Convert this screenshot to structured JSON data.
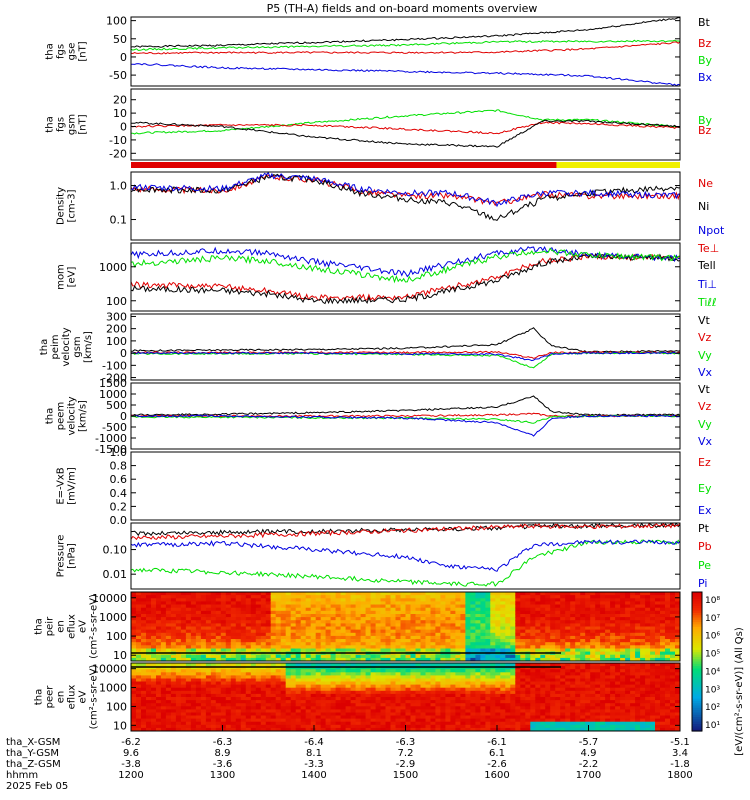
{
  "title": "P5 (TH-A) fields and on-board moments overview",
  "colors": {
    "black": "#000000",
    "red": "#e00000",
    "green": "#00e000",
    "blue": "#0000e0",
    "cyan": "#00b0b0"
  },
  "x_axis": {
    "ticks": [
      "1200",
      "1300",
      "1400",
      "1500",
      "1600",
      "1700",
      "1800"
    ],
    "rows": [
      {
        "label": "tha_X-GSM",
        "values": [
          "-6.2",
          "-6.3",
          "-6.4",
          "-6.3",
          "-6.1",
          "-5.7",
          "-5.1"
        ]
      },
      {
        "label": "tha_Y-GSM",
        "values": [
          "9.6",
          "8.9",
          "8.1",
          "7.2",
          "6.1",
          "4.9",
          "3.4"
        ]
      },
      {
        "label": "tha_Z-GSM",
        "values": [
          "-3.8",
          "-3.6",
          "-3.3",
          "-2.9",
          "-2.6",
          "-2.2",
          "-1.8"
        ]
      },
      {
        "label": "hhmm",
        "values": [
          "1200",
          "1300",
          "1400",
          "1500",
          "1600",
          "1700",
          "1800"
        ]
      }
    ],
    "date": "2025 Feb 05"
  },
  "colorbar": {
    "ticks": [
      "10⁸",
      "10⁷",
      "10⁶",
      "10⁵",
      "10⁴",
      "10³",
      "10²",
      "10¹"
    ],
    "label": "[eV/(cm²-s-sr-eV)] (All Qs)"
  },
  "chart_data": [
    {
      "type": "line",
      "ylabel": [
        "tha",
        "fgs",
        "gse",
        "[nT]"
      ],
      "ylim": [
        -80,
        110
      ],
      "yticks": [
        "100",
        "50",
        "0",
        "-50"
      ],
      "ytick_values": [
        100,
        50,
        0,
        -50
      ],
      "x": [
        1200,
        1300,
        1400,
        1500,
        1600,
        1700,
        1800
      ],
      "series": [
        {
          "name": "Bt",
          "color": "#000000",
          "values": [
            28,
            32,
            40,
            48,
            58,
            75,
            108
          ]
        },
        {
          "name": "Bz",
          "color": "#e00000",
          "values": [
            10,
            12,
            12,
            12,
            13,
            22,
            40
          ]
        },
        {
          "name": "By",
          "color": "#00e000",
          "values": [
            20,
            25,
            29,
            33,
            42,
            43,
            44
          ]
        },
        {
          "name": "Bx",
          "color": "#0000e0",
          "values": [
            -18,
            -30,
            -35,
            -40,
            -45,
            -52,
            -78
          ]
        }
      ]
    },
    {
      "type": "line",
      "ylabel": [
        "tha",
        "fgs",
        "gsm",
        "[nT]"
      ],
      "ylim": [
        -25,
        28
      ],
      "yticks": [
        "20",
        "10",
        "0",
        "-10",
        "-20"
      ],
      "ytick_values": [
        20,
        10,
        0,
        -10,
        -20
      ],
      "x": [
        1200,
        1300,
        1400,
        1500,
        1600,
        1650,
        1700,
        1800
      ],
      "series": [
        {
          "name": "By",
          "color": "#00e000",
          "values": [
            -5,
            -3,
            3,
            8,
            12,
            5,
            5,
            0
          ]
        },
        {
          "name": "Bz",
          "color": "#e00000",
          "values": [
            0,
            1,
            1,
            -2,
            -5,
            3,
            2,
            -1
          ]
        },
        {
          "name": "",
          "color": "#000000",
          "values": [
            3,
            0,
            -8,
            -13,
            -15,
            4,
            4,
            0
          ]
        }
      ]
    },
    {
      "type": "line",
      "ylabel": [
        "Density",
        "[cm-3]"
      ],
      "ylog": true,
      "ylim": [
        0.025,
        2.5
      ],
      "yticks": [
        "1.0",
        "0.1"
      ],
      "ytick_values": [
        1.0,
        0.1
      ],
      "x": [
        1200,
        1300,
        1350,
        1400,
        1450,
        1500,
        1550,
        1600,
        1650,
        1700,
        1800
      ],
      "series": [
        {
          "name": "Ne",
          "color": "#e00000",
          "values": [
            0.8,
            0.7,
            1.8,
            1.5,
            0.7,
            0.5,
            0.5,
            0.3,
            0.55,
            0.5,
            0.5
          ]
        },
        {
          "name": "Ni",
          "color": "#000000",
          "values": [
            0.8,
            0.7,
            1.8,
            1.5,
            0.6,
            0.4,
            0.3,
            0.1,
            0.4,
            0.6,
            0.9
          ]
        },
        {
          "name": "Npot",
          "color": "#0000e0",
          "values": [
            0.9,
            0.8,
            2.0,
            1.6,
            0.8,
            0.6,
            0.6,
            0.3,
            0.6,
            0.6,
            0.5
          ]
        }
      ]
    },
    {
      "type": "line",
      "ylabel": [
        "mom",
        "[eV]"
      ],
      "ylog": true,
      "ylim": [
        50,
        5000
      ],
      "yticks": [
        "1000",
        "100"
      ],
      "ytick_values": [
        1000,
        100
      ],
      "x": [
        1200,
        1300,
        1350,
        1400,
        1500,
        1550,
        1600,
        1650,
        1700,
        1800
      ],
      "series": [
        {
          "name": "Te⊥",
          "color": "#e00000",
          "values": [
            300,
            260,
            200,
            120,
            130,
            250,
            500,
            1500,
            2000,
            1800
          ]
        },
        {
          "name": "Tell",
          "color": "#000000",
          "values": [
            230,
            200,
            160,
            100,
            110,
            200,
            400,
            1300,
            2000,
            1800
          ]
        },
        {
          "name": "Ti⊥",
          "color": "#0000e0",
          "values": [
            2200,
            3000,
            2500,
            1400,
            600,
            1300,
            2500,
            3500,
            2200,
            1800
          ]
        },
        {
          "name": "Tiℓℓ",
          "color": "#00e000",
          "values": [
            1200,
            1800,
            1500,
            900,
            400,
            900,
            2000,
            3000,
            2200,
            1800
          ]
        }
      ]
    },
    {
      "type": "line",
      "ylabel": [
        "tha",
        "peim",
        "velocity",
        "gsm",
        "[km/s]"
      ],
      "ylim": [
        -220,
        320
      ],
      "yticks": [
        "300",
        "200",
        "100",
        "0",
        "-100",
        "-200"
      ],
      "ytick_values": [
        300,
        200,
        100,
        0,
        -100,
        -200
      ],
      "x": [
        1200,
        1300,
        1400,
        1500,
        1600,
        1640,
        1660,
        1700,
        1800
      ],
      "series": [
        {
          "name": "Vt",
          "color": "#000000",
          "values": [
            20,
            25,
            30,
            40,
            70,
            200,
            60,
            10,
            20
          ]
        },
        {
          "name": "Vz",
          "color": "#e00000",
          "values": [
            5,
            5,
            5,
            5,
            10,
            -40,
            5,
            5,
            5
          ]
        },
        {
          "name": "Vy",
          "color": "#00e000",
          "values": [
            -5,
            -5,
            -5,
            -10,
            -20,
            -120,
            -5,
            0,
            0
          ]
        },
        {
          "name": "Vx",
          "color": "#0000e0",
          "values": [
            0,
            0,
            0,
            -5,
            -10,
            -60,
            -5,
            0,
            0
          ]
        }
      ]
    },
    {
      "type": "line",
      "ylabel": [
        "tha",
        "peem",
        "velocity",
        "[km/s]"
      ],
      "ylim": [
        -1500,
        1500
      ],
      "yticks": [
        "1500",
        "1000",
        "500",
        "0",
        "-500",
        "-1000",
        "-1500"
      ],
      "ytick_values": [
        1500,
        1000,
        500,
        0,
        -500,
        -1000,
        -1500
      ],
      "x": [
        1200,
        1300,
        1400,
        1500,
        1600,
        1640,
        1660,
        1700,
        1800
      ],
      "series": [
        {
          "name": "Vt",
          "color": "#000000",
          "values": [
            50,
            80,
            150,
            250,
            400,
            900,
            200,
            50,
            50
          ]
        },
        {
          "name": "Vz",
          "color": "#e00000",
          "values": [
            0,
            0,
            0,
            0,
            50,
            100,
            0,
            0,
            0
          ]
        },
        {
          "name": "Vy",
          "color": "#00e000",
          "values": [
            -50,
            -50,
            -80,
            -100,
            -150,
            -300,
            -50,
            0,
            0
          ]
        },
        {
          "name": "Vx",
          "color": "#0000e0",
          "values": [
            0,
            0,
            -50,
            -100,
            -300,
            -900,
            -100,
            0,
            0
          ]
        }
      ]
    },
    {
      "type": "line",
      "ylabel": [
        "E=-VxB",
        "[mV/m]"
      ],
      "ylim": [
        0,
        1
      ],
      "yticks": [
        "1.0",
        "0.8",
        "0.6",
        "0.4",
        "0.2",
        "0.0"
      ],
      "ytick_values": [
        1.0,
        0.8,
        0.6,
        0.4,
        0.2,
        0.0
      ],
      "x": [
        1200,
        1800
      ],
      "series": [
        {
          "name": "Ez",
          "color": "#e00000",
          "values": [
            null,
            null
          ]
        },
        {
          "name": "Ey",
          "color": "#00e000",
          "values": [
            null,
            null
          ]
        },
        {
          "name": "Ex",
          "color": "#0000e0",
          "values": [
            null,
            null
          ]
        }
      ]
    },
    {
      "type": "line",
      "ylabel": [
        "Pressure",
        "[nPa]"
      ],
      "ylog": true,
      "ylim": [
        0.0025,
        1.2
      ],
      "yticks": [
        "0.10",
        "0.01"
      ],
      "ytick_values": [
        0.1,
        0.01
      ],
      "x": [
        1200,
        1300,
        1400,
        1500,
        1550,
        1600,
        1640,
        1700,
        1800
      ],
      "series": [
        {
          "name": "Pt",
          "color": "#000000",
          "values": [
            0.45,
            0.5,
            0.55,
            0.65,
            0.7,
            0.75,
            0.9,
            0.9,
            1.0
          ]
        },
        {
          "name": "Pb",
          "color": "#e00000",
          "values": [
            0.3,
            0.35,
            0.45,
            0.6,
            0.7,
            0.8,
            0.9,
            0.85,
            0.95
          ]
        },
        {
          "name": "Pe",
          "color": "#00e000",
          "values": [
            0.015,
            0.012,
            0.008,
            0.005,
            0.004,
            0.004,
            0.05,
            0.2,
            0.2
          ]
        },
        {
          "name": "Pi",
          "color": "#0000e0",
          "values": [
            0.15,
            0.18,
            0.1,
            0.05,
            0.02,
            0.015,
            0.15,
            0.2,
            0.2
          ]
        }
      ]
    },
    {
      "type": "heatmap",
      "ylabel": [
        "tha",
        "peir",
        "en",
        "eflux",
        "eV",
        "(cm²-s-sr-eV)"
      ],
      "ylog": true,
      "ylim": [
        5,
        20000
      ],
      "yticks": [
        "10000",
        "1000",
        "100",
        "10"
      ],
      "ytick_values": [
        10000,
        1000,
        100,
        10
      ]
    },
    {
      "type": "heatmap",
      "ylabel": [
        "tha",
        "peer",
        "en",
        "eflux",
        "eV",
        "(cm²-s-sr-eV)"
      ],
      "ylog": true,
      "ylim": [
        5,
        20000
      ],
      "yticks": [
        "10000",
        "1000",
        "100",
        "10"
      ],
      "ytick_values": [
        10000,
        1000,
        100,
        10
      ]
    }
  ]
}
